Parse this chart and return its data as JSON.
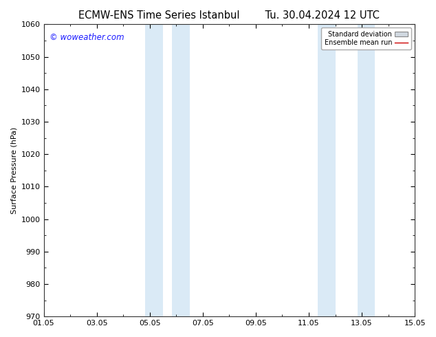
{
  "title": "ECMW-ENS Time Series Istanbul",
  "title2": "Tu. 30.04.2024 12 UTC",
  "ylabel": "Surface Pressure (hPa)",
  "ylim": [
    970,
    1060
  ],
  "ytick_major_step": 10,
  "ytick_minor_step": 5,
  "xtick_labels": [
    "01.05",
    "03.05",
    "05.05",
    "07.05",
    "09.05",
    "11.05",
    "13.05",
    "15.05"
  ],
  "xtick_positions": [
    0,
    2,
    4,
    6,
    8,
    10,
    12,
    14
  ],
  "xlim": [
    0,
    14
  ],
  "shade_bands": [
    {
      "xmin": 3.833,
      "xmax": 4.5
    },
    {
      "xmin": 4.833,
      "xmax": 5.5
    },
    {
      "xmin": 10.333,
      "xmax": 11.0
    },
    {
      "xmin": 11.833,
      "xmax": 12.5
    }
  ],
  "shade_color": "#daeaf6",
  "watermark_text": "© woweather.com",
  "watermark_color": "#1a1aff",
  "legend_std_label": "Standard deviation",
  "legend_mean_label": "Ensemble mean run",
  "legend_mean_color": "#cc0000",
  "bg_color": "#ffffff",
  "plot_bg_color": "#ffffff",
  "title_fontsize": 10.5,
  "axis_label_fontsize": 8,
  "tick_fontsize": 8,
  "legend_fontsize": 7,
  "watermark_fontsize": 8.5
}
